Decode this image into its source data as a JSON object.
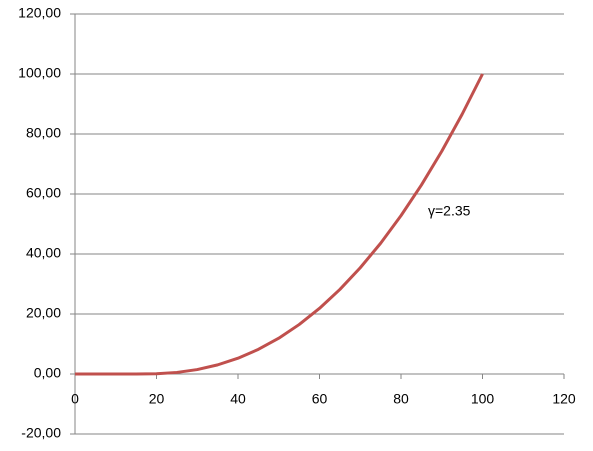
{
  "chart_data": {
    "type": "line",
    "x": [
      0,
      5,
      10,
      15,
      20,
      25,
      30,
      35,
      40,
      45,
      50,
      55,
      60,
      65,
      70,
      75,
      80,
      85,
      90,
      95,
      100
    ],
    "series": [
      {
        "color": "#c0504d",
        "values": [
          0,
          0,
          0,
          0,
          0.08,
          0.52,
          1.48,
          3.04,
          5.27,
          8.21,
          11.93,
          16.48,
          21.88,
          28.18,
          35.41,
          43.59,
          52.79,
          62.98,
          74.25,
          86.58,
          100
        ]
      }
    ],
    "xlim": [
      0,
      120
    ],
    "xticks": [
      0,
      20,
      40,
      60,
      80,
      100,
      120
    ],
    "ylim": [
      -20,
      120
    ],
    "yticks": [
      {
        "value": -20,
        "label": "-20,00"
      },
      {
        "value": 0,
        "label": "0,00"
      },
      {
        "value": 20,
        "label": "20,00"
      },
      {
        "value": 40,
        "label": "40,00"
      },
      {
        "value": 60,
        "label": "60,00"
      },
      {
        "value": 80,
        "label": "80,00"
      },
      {
        "value": 100,
        "label": "100,00"
      },
      {
        "value": 120,
        "label": "120,00"
      }
    ],
    "grid": true,
    "annotation": "γ=2.35"
  }
}
